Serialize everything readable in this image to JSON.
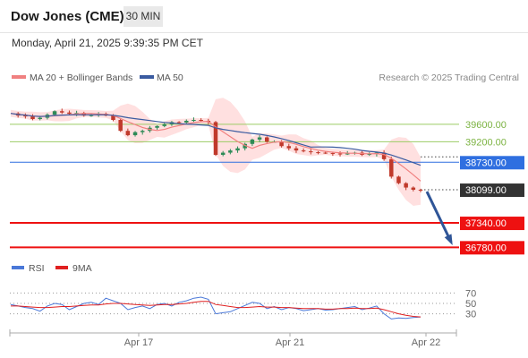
{
  "header": {
    "title": "Dow Jones (CME)",
    "timeframe": "30 MIN"
  },
  "datetime": "Monday, April 21, 2025 9:39:35 PM CET",
  "legend": {
    "ma20": "MA 20 + Bollinger Bands",
    "ma50": "MA 50",
    "copyright": "Research © 2025 Trading Central"
  },
  "rsi_legend": {
    "rsi": "RSI",
    "ma": "9MA"
  },
  "colors": {
    "ma20": "#f08080",
    "bollinger": "#ffd6d6",
    "ma50": "#3a5ba0",
    "candle_up": "#2e8b57",
    "candle_down": "#c0392b",
    "green_level": "#9ccc65",
    "blue_level": "#2f6fe0",
    "red_level": "#ee1111",
    "current": "#333333",
    "arrow": "#2f5597",
    "rsi": "#4a78d8",
    "rsi_ma": "#e02020"
  },
  "chart_data": [
    {
      "type": "candlestick",
      "x_labels": [
        "Apr 17",
        "Apr 21",
        "Apr 22"
      ],
      "ylim": [
        36500,
        40500
      ],
      "price_path": [
        39850,
        39800,
        39780,
        39720,
        39750,
        39820,
        39900,
        39870,
        39840,
        39860,
        39800,
        39810,
        39840,
        39800,
        39700,
        39450,
        39350,
        39420,
        39450,
        39520,
        39560,
        39600,
        39650,
        39640,
        39680,
        39700,
        39680,
        39650,
        38900,
        38950,
        39000,
        39050,
        39150,
        39250,
        39300,
        39200,
        39200,
        39100,
        39050,
        39000,
        38980,
        38960,
        38950,
        38940,
        38930,
        38920,
        38930,
        38950,
        38900,
        38920,
        38950,
        38800,
        38400,
        38250,
        38150,
        38100,
        38099
      ],
      "levels": [
        {
          "label": "39600.00",
          "value": 39600,
          "kind": "resistance"
        },
        {
          "label": "39200.00",
          "value": 39200,
          "kind": "resistance"
        },
        {
          "label": "38730.00",
          "value": 38730,
          "kind": "pivot"
        },
        {
          "label": "38099.00",
          "value": 38099,
          "kind": "current"
        },
        {
          "label": "37340.00",
          "value": 37340,
          "kind": "target"
        },
        {
          "label": "36780.00",
          "value": 36780,
          "kind": "target"
        }
      ]
    },
    {
      "type": "line",
      "name": "RSI",
      "ylim": [
        0,
        100
      ],
      "y_ticks": [
        "70",
        "50",
        "30"
      ],
      "rsi": [
        48,
        45,
        42,
        40,
        35,
        45,
        50,
        48,
        38,
        44,
        50,
        52,
        48,
        60,
        55,
        50,
        38,
        42,
        45,
        40,
        48,
        50,
        45,
        52,
        55,
        60,
        62,
        58,
        30,
        32,
        34,
        40,
        46,
        52,
        50,
        40,
        44,
        38,
        42,
        40,
        36,
        38,
        40,
        37,
        38,
        40,
        42,
        44,
        38,
        41,
        45,
        30,
        20,
        22,
        21,
        23,
        24
      ],
      "rsi_ma": [
        45,
        45,
        44,
        43,
        42,
        42,
        43,
        44,
        44,
        45,
        46,
        47,
        47,
        49,
        50,
        50,
        49,
        48,
        47,
        46,
        47,
        48,
        48,
        49,
        50,
        52,
        54,
        54,
        48,
        46,
        44,
        42,
        42,
        43,
        44,
        43,
        43,
        42,
        42,
        41,
        40,
        40,
        40,
        39,
        39,
        40,
        40,
        41,
        40,
        40,
        41,
        38,
        34,
        30,
        27,
        25,
        24
      ]
    }
  ]
}
